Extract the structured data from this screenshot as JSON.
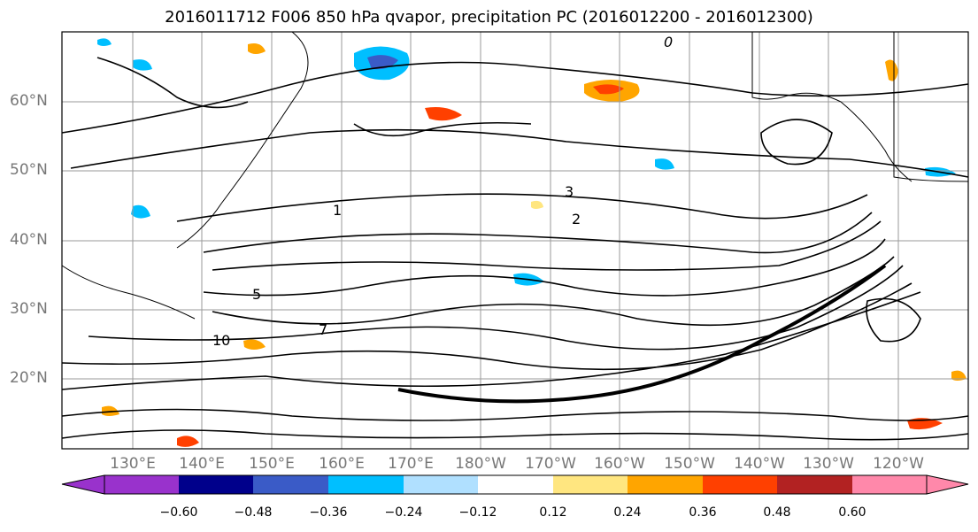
{
  "title": "2016011712 F006 850 hPa qvapor, precipitation PC (2016012200 - 2016012300)",
  "lat_labels": [
    "60°N",
    "50°N",
    "40°N",
    "30°N",
    "20°N"
  ],
  "lon_labels": [
    "130°E",
    "140°E",
    "150°E",
    "160°E",
    "170°E",
    "180°W",
    "170°W",
    "160°W",
    "150°W",
    "140°W",
    "130°W",
    "120°W"
  ],
  "colorbar": {
    "ticks": [
      "−0.60",
      "−0.48",
      "−0.36",
      "−0.24",
      "−0.12",
      "0.12",
      "0.24",
      "0.36",
      "0.48",
      "0.60"
    ],
    "colors": [
      "#9932CC",
      "#00008B",
      "#3A5BC7",
      "#00BFFF",
      "#B0E0FF",
      "#FFFFFF",
      "#FFE680",
      "#FFA500",
      "#FF4000",
      "#B22222",
      "#FF88AA"
    ]
  },
  "contour_labels": [
    "0",
    "1",
    "2",
    "3",
    "5",
    "7",
    "10"
  ]
}
